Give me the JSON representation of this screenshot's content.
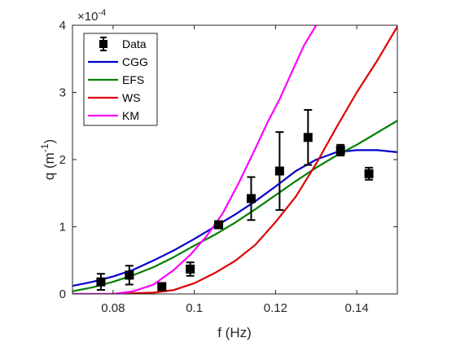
{
  "chart_data": {
    "type": "line",
    "xlabel": "f (Hz)",
    "ylabel": "q (m",
    "ylabel_exp": "-1",
    "ylabel_close": ")",
    "exponent_prefix": "×10",
    "exponent_power": "-4",
    "xlim": [
      0.07,
      0.15
    ],
    "ylim": [
      0,
      4
    ],
    "x_ticks": [
      0.08,
      0.1,
      0.12,
      0.14
    ],
    "x_tick_labels": [
      "0.08",
      "0.1",
      "0.12",
      "0.14"
    ],
    "y_ticks": [
      0,
      1,
      2,
      3,
      4
    ],
    "y_tick_labels": [
      "0",
      "1",
      "2",
      "3",
      "4"
    ],
    "legend_position": "top-left",
    "legend": [
      "Data",
      "CGG",
      "EFS",
      "WS",
      "KM"
    ],
    "data_points": {
      "name": "Data",
      "color": "#000000",
      "x": [
        0.077,
        0.084,
        0.092,
        0.099,
        0.106,
        0.114,
        0.121,
        0.128,
        0.136,
        0.143
      ],
      "y": [
        0.18,
        0.28,
        0.11,
        0.37,
        1.03,
        1.42,
        1.83,
        2.33,
        2.14,
        1.79
      ],
      "err": [
        0.12,
        0.14,
        0.05,
        0.1,
        0.05,
        0.32,
        0.58,
        0.41,
        0.08,
        0.09
      ]
    },
    "series": [
      {
        "name": "CGG",
        "color": "#0000cc",
        "x": [
          0.07,
          0.075,
          0.08,
          0.085,
          0.09,
          0.095,
          0.1,
          0.105,
          0.11,
          0.115,
          0.12,
          0.125,
          0.13,
          0.135,
          0.14,
          0.145,
          0.15
        ],
        "y": [
          0.12,
          0.18,
          0.26,
          0.36,
          0.5,
          0.65,
          0.82,
          1.0,
          1.18,
          1.38,
          1.6,
          1.83,
          2.0,
          2.11,
          2.14,
          2.14,
          2.11
        ]
      },
      {
        "name": "EFS",
        "color": "#008000",
        "x": [
          0.07,
          0.075,
          0.08,
          0.085,
          0.09,
          0.095,
          0.1,
          0.105,
          0.11,
          0.115,
          0.12,
          0.125,
          0.13,
          0.135,
          0.14,
          0.145,
          0.15
        ],
        "y": [
          0.04,
          0.1,
          0.18,
          0.28,
          0.4,
          0.55,
          0.72,
          0.88,
          1.06,
          1.26,
          1.47,
          1.68,
          1.88,
          2.06,
          2.22,
          2.4,
          2.58
        ]
      },
      {
        "name": "WS",
        "color": "#dd0000",
        "x": [
          0.07,
          0.08,
          0.09,
          0.095,
          0.1,
          0.105,
          0.11,
          0.115,
          0.12,
          0.125,
          0.13,
          0.135,
          0.14,
          0.145,
          0.15
        ],
        "y": [
          0.0,
          0.0,
          0.02,
          0.06,
          0.16,
          0.31,
          0.49,
          0.73,
          1.07,
          1.45,
          1.94,
          2.48,
          3.0,
          3.47,
          3.98
        ]
      },
      {
        "name": "KM",
        "color": "#ff00ff",
        "x": [
          0.07,
          0.08,
          0.085,
          0.09,
          0.095,
          0.099,
          0.103,
          0.107,
          0.111,
          0.115,
          0.118,
          0.121,
          0.124,
          0.127,
          0.13
        ],
        "y": [
          0.0,
          0.0,
          0.04,
          0.14,
          0.36,
          0.58,
          0.86,
          1.2,
          1.66,
          2.16,
          2.55,
          2.9,
          3.3,
          3.7,
          4.0
        ]
      }
    ]
  }
}
